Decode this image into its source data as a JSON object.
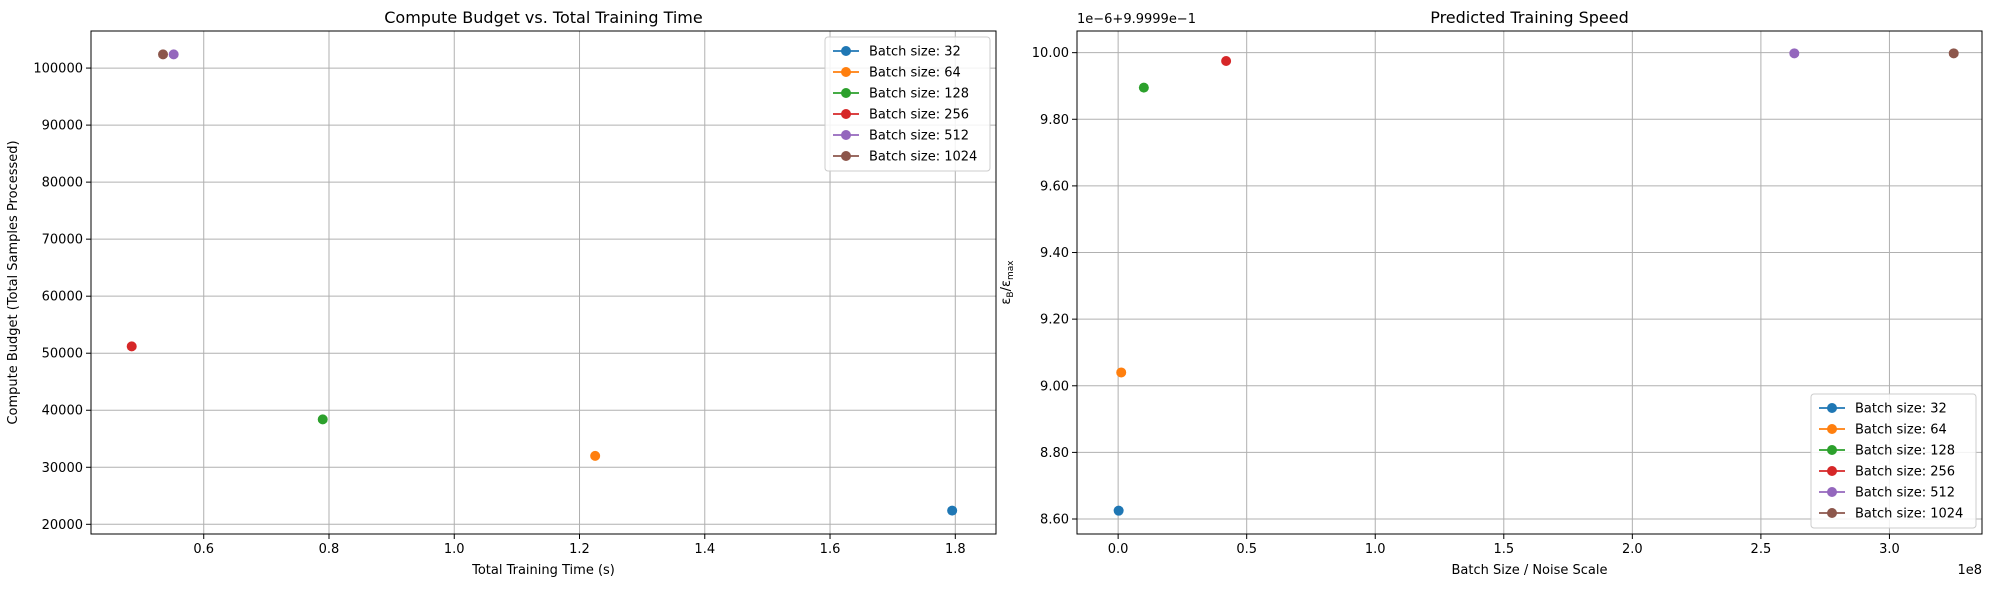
{
  "chart_data": [
    {
      "type": "scatter",
      "title": "Compute Budget vs. Total Training Time",
      "xlabel": "Total Training Time (s)",
      "ylabel": "Compute Budget (Total Samples Processed)",
      "xlim": [
        0.42,
        1.865
      ],
      "ylim": [
        18300,
        106500
      ],
      "xticks": [
        0.6,
        0.8,
        1.0,
        1.2,
        1.4,
        1.6,
        1.8
      ],
      "xtick_labels": [
        "0.6",
        "0.8",
        "1.0",
        "1.2",
        "1.4",
        "1.6",
        "1.8"
      ],
      "yticks": [
        20000,
        30000,
        40000,
        50000,
        60000,
        70000,
        80000,
        90000,
        100000
      ],
      "ytick_labels": [
        "20000",
        "30000",
        "40000",
        "50000",
        "60000",
        "70000",
        "80000",
        "90000",
        "100000"
      ],
      "grid": true,
      "legend_position": "top-right",
      "series": [
        {
          "name": "Batch size: 32",
          "color": "#1f77b4",
          "points": [
            [
              1.795,
              22400
            ]
          ]
        },
        {
          "name": "Batch size: 64",
          "color": "#ff7f0e",
          "points": [
            [
              1.225,
              32000
            ]
          ]
        },
        {
          "name": "Batch size: 128",
          "color": "#2ca02c",
          "points": [
            [
              0.79,
              38400
            ]
          ]
        },
        {
          "name": "Batch size: 256",
          "color": "#d62728",
          "points": [
            [
              0.485,
              51200
            ]
          ]
        },
        {
          "name": "Batch size: 512",
          "color": "#9467bd",
          "points": [
            [
              0.552,
              102400
            ]
          ]
        },
        {
          "name": "Batch size: 1024",
          "color": "#8c564b",
          "points": [
            [
              0.535,
              102400
            ]
          ]
        }
      ]
    },
    {
      "type": "scatter",
      "title": "Predicted Training Speed",
      "xlabel": "Batch Size / Noise Scale",
      "ylabel": "ε_B/ε_max",
      "ylabel_main": "ε",
      "ylabel_sub1": "B",
      "ylabel_slash": "/ε",
      "ylabel_sub2": "max",
      "x_offset_label": "1e8",
      "y_offset_label": "1e−6+9.9999e−1",
      "xlim": [
        -0.16,
        3.36
      ],
      "ylim": [
        8.555,
        10.065
      ],
      "xticks": [
        0.0,
        0.5,
        1.0,
        1.5,
        2.0,
        2.5,
        3.0
      ],
      "xtick_labels": [
        "0.0",
        "0.5",
        "1.0",
        "1.5",
        "2.0",
        "2.5",
        "3.0"
      ],
      "yticks": [
        8.6,
        8.8,
        9.0,
        9.2,
        9.4,
        9.6,
        9.8,
        10.0
      ],
      "ytick_labels": [
        "8.60",
        "8.80",
        "9.00",
        "9.20",
        "9.40",
        "9.60",
        "9.80",
        "10.00"
      ],
      "grid": true,
      "legend_position": "bottom-right",
      "series": [
        {
          "name": "Batch size: 32",
          "color": "#1f77b4",
          "points": [
            [
              0.002,
              8.625
            ]
          ]
        },
        {
          "name": "Batch size: 64",
          "color": "#ff7f0e",
          "points": [
            [
              0.012,
              9.04
            ]
          ]
        },
        {
          "name": "Batch size: 128",
          "color": "#2ca02c",
          "points": [
            [
              0.1,
              9.895
            ]
          ]
        },
        {
          "name": "Batch size: 256",
          "color": "#d62728",
          "points": [
            [
              0.42,
              9.975
            ]
          ]
        },
        {
          "name": "Batch size: 512",
          "color": "#9467bd",
          "points": [
            [
              2.63,
              9.998
            ]
          ]
        },
        {
          "name": "Batch size: 1024",
          "color": "#8c564b",
          "points": [
            [
              3.25,
              9.998
            ]
          ]
        }
      ]
    }
  ]
}
